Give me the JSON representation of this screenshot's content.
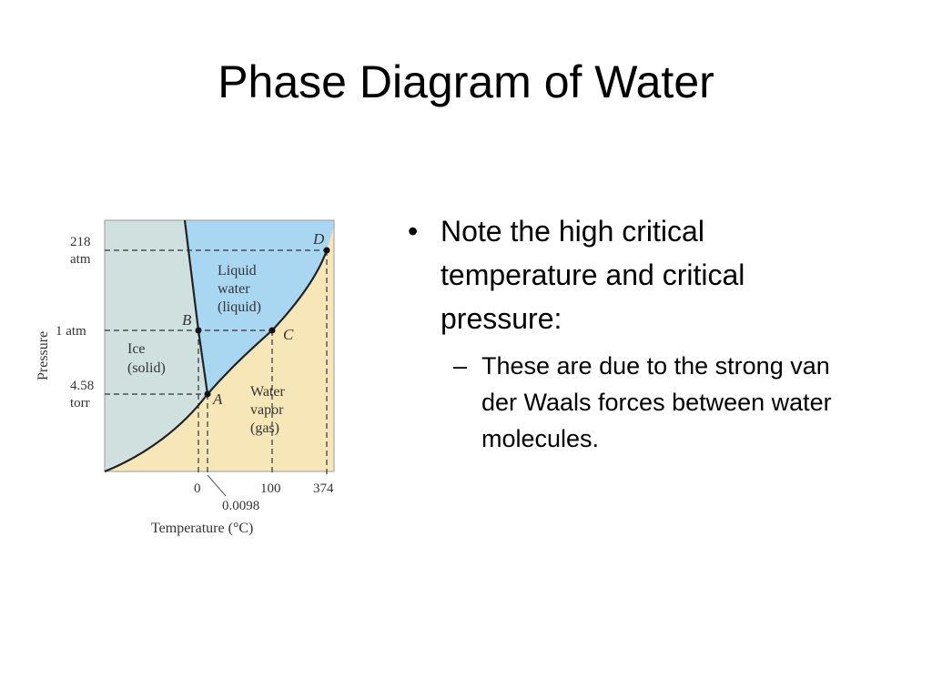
{
  "slide": {
    "title": "Phase Diagram of Water"
  },
  "diagram": {
    "pressure_ticks": {
      "p218_line1": "218",
      "p218_line2": "atm",
      "p1": "1 atm",
      "p458_line1": "4.58",
      "p458_line2": "torr"
    },
    "temperature_ticks": {
      "t0": "0",
      "t100": "100",
      "t374": "374",
      "t_triple": "0.0098"
    },
    "axis_labels": {
      "y": "Pressure",
      "x": "Temperature (°C)"
    },
    "points": {
      "A": "A",
      "B": "B",
      "C": "C",
      "D": "D"
    },
    "regions": {
      "liquid": [
        "Liquid",
        "water",
        "(liquid)"
      ],
      "solid": [
        "Ice",
        "(solid)"
      ],
      "gas": [
        "Water",
        "vapor",
        "(gas)"
      ]
    },
    "colors": {
      "solid": "#cfe0de",
      "liquid": "#a9d7f2",
      "gas": "#f6e6b8",
      "curve": "#222222"
    }
  },
  "bullets": {
    "main": "Note the high critical temperature and critical pressure:",
    "sub": "These are due to the strong van der Waals forces between water molecules.",
    "main_mark": "•",
    "sub_mark": "–"
  }
}
